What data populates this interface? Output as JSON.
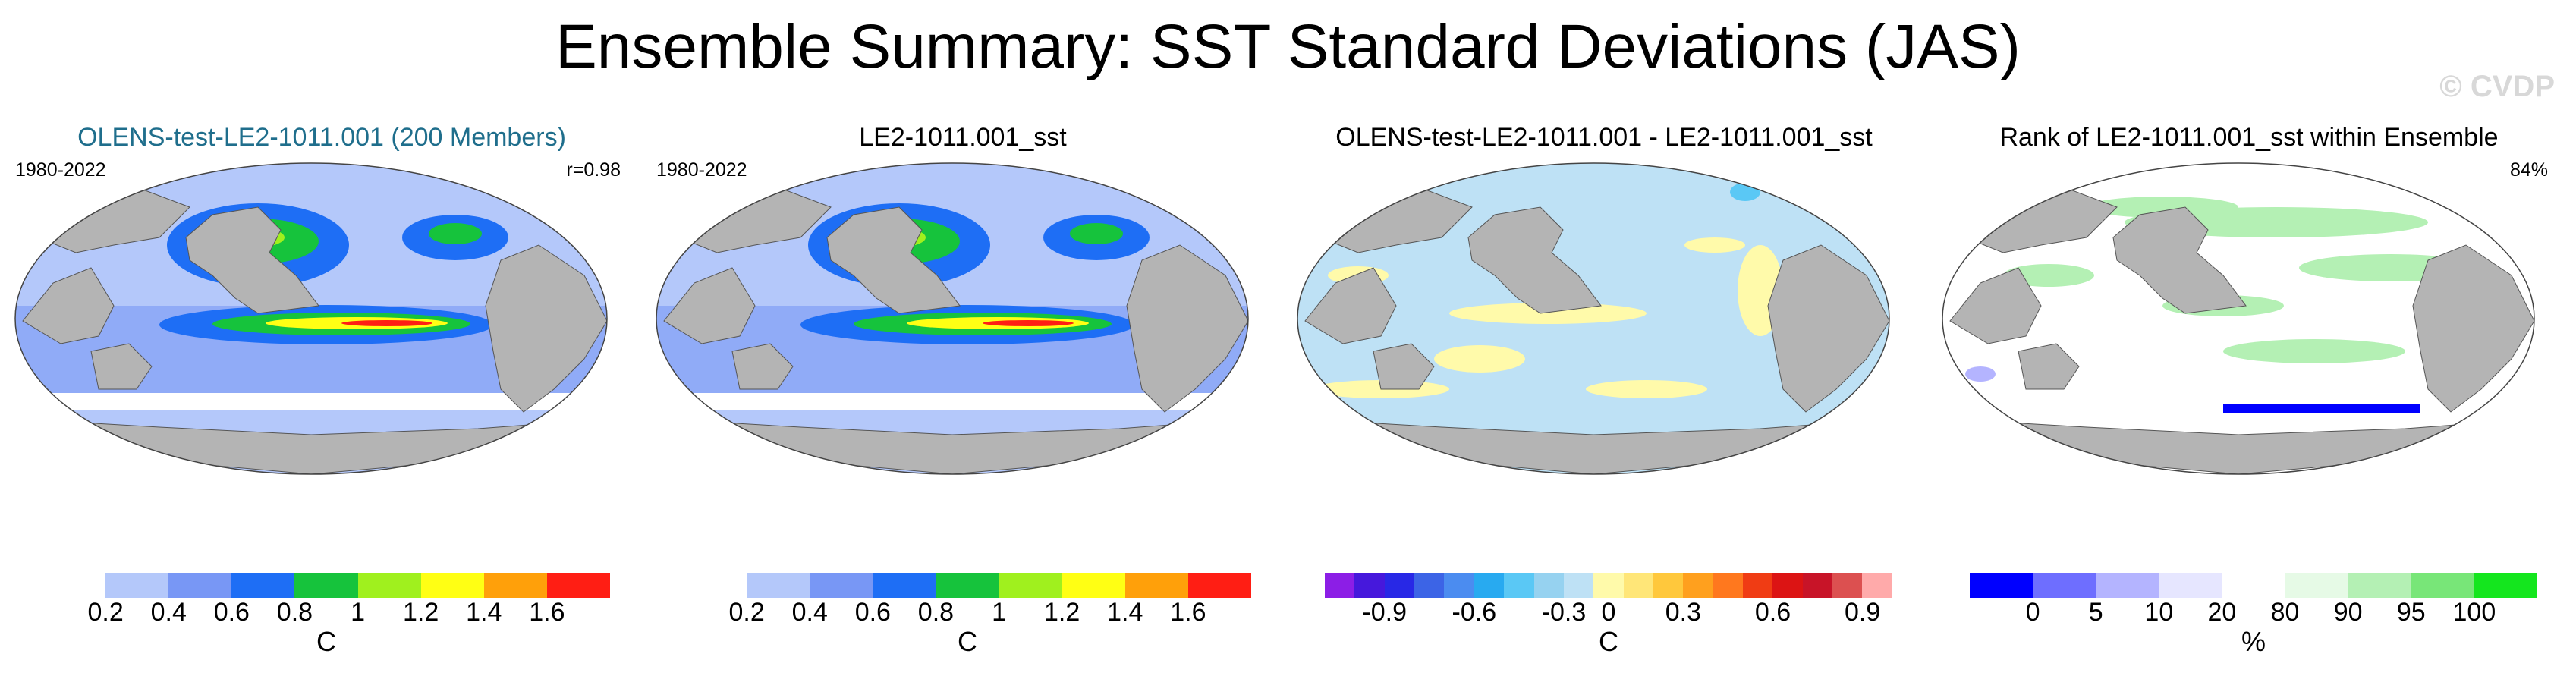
{
  "title": "Ensemble Summary: SST Standard Deviations (JAS)",
  "watermark": "© CVDP",
  "chart_data": [
    {
      "type": "heatmap",
      "projection": "global",
      "title": "OLENS-test-LE2-1011.001 (200 Members)",
      "title_color": "#1f6e8c",
      "period": "1980-2022",
      "stat": "r=0.98",
      "colorbar": {
        "unit": "C",
        "colors": [
          "#ffffff",
          "#b4c8fa",
          "#7897f5",
          "#1e6ef5",
          "#16c33c",
          "#a0f01e",
          "#ffff14",
          "#ffa00a",
          "#ff1e14"
        ],
        "tick_labels": [
          "0.2",
          "0.4",
          "0.6",
          "0.8",
          "1",
          "1.2",
          "1.4",
          "1.6"
        ]
      }
    },
    {
      "type": "heatmap",
      "projection": "global",
      "title": "LE2-1011.001_sst",
      "period": "1980-2022",
      "colorbar": {
        "unit": "C",
        "colors": [
          "#ffffff",
          "#b4c8fa",
          "#7897f5",
          "#1e6ef5",
          "#16c33c",
          "#a0f01e",
          "#ffff14",
          "#ffa00a",
          "#ff1e14"
        ],
        "tick_labels": [
          "0.2",
          "0.4",
          "0.6",
          "0.8",
          "1",
          "1.2",
          "1.4",
          "1.6"
        ]
      }
    },
    {
      "type": "heatmap",
      "projection": "global",
      "title": "OLENS-test-LE2-1011.001 - LE2-1011.001_sst",
      "colorbar": {
        "unit": "C",
        "colors": [
          "#8c1ee6",
          "#4618dc",
          "#2828e6",
          "#3c64e6",
          "#4b8cf0",
          "#28aaf0",
          "#5ac8f5",
          "#96d2f0",
          "#bee1f5",
          "#fffaaa",
          "#ffe678",
          "#ffc83c",
          "#ffa01e",
          "#ff781e",
          "#f03c14",
          "#dc1414",
          "#c81428",
          "#dc5050",
          "#ffaaaa"
        ],
        "tick_labels": [
          "-0.9",
          "-0.6",
          "-0.3",
          "0",
          "0.3",
          "0.6",
          "0.9"
        ]
      }
    },
    {
      "type": "heatmap",
      "projection": "global",
      "title": "Rank of LE2-1011.001_sst within Ensemble",
      "stat": "84%",
      "colorbar": {
        "unit": "%",
        "colors": [
          "#0000ff",
          "#6e6eff",
          "#b4b4ff",
          "#e6e6ff",
          "#ffffff",
          "#e6fae6",
          "#b4f0b4",
          "#78e678",
          "#14e61e"
        ],
        "tick_labels": [
          "0",
          "5",
          "10",
          "20",
          "80",
          "90",
          "95",
          "100"
        ]
      }
    }
  ]
}
